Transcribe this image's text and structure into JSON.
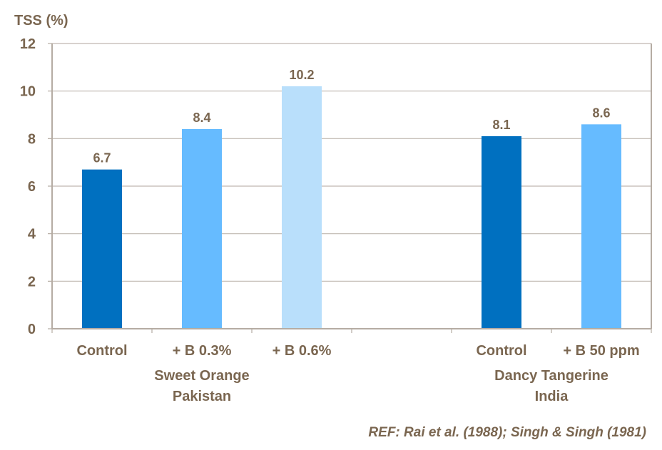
{
  "chart_data": {
    "type": "bar",
    "ylabel": "TSS (%)",
    "xlabel": "",
    "ylim": [
      0,
      12
    ],
    "yticks": [
      0,
      2,
      4,
      6,
      8,
      10,
      12
    ],
    "grid": true,
    "legend": "none",
    "categories": [
      "Control",
      "+ B 0.3%",
      "+ B 0.6%",
      "",
      "Control",
      "+ B 50 ppm"
    ],
    "values": [
      6.7,
      8.4,
      10.2,
      null,
      8.1,
      8.6
    ],
    "data_labels": [
      "6.7",
      "8.4",
      "10.2",
      "",
      "8.1",
      "8.6"
    ],
    "bar_colors": [
      "#0070c0",
      "#66bbff",
      "#b9dffb",
      null,
      "#0070c0",
      "#66bbff"
    ],
    "groups": [
      {
        "line1": "Sweet Orange",
        "line2": "Pakistan",
        "categories": [
          0,
          1,
          2
        ]
      },
      {
        "line1": "Dancy Tangerine",
        "line2": "India",
        "categories": [
          4,
          5
        ]
      }
    ]
  },
  "colors": {
    "text": "#7a6650",
    "axis": "#b5aca3",
    "grid": "#c0b8b0"
  },
  "reference": "REF: Rai et al. (1988); Singh & Singh (1981)"
}
